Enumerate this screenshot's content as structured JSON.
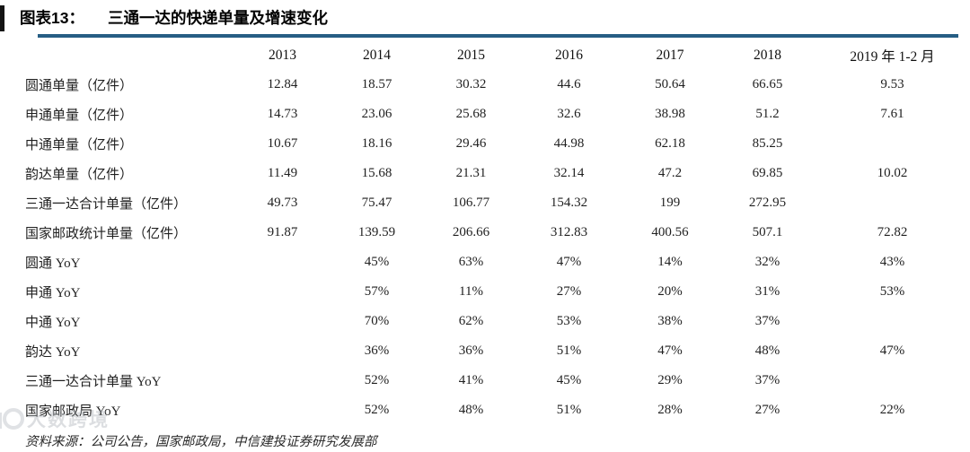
{
  "header": {
    "figure_label": "图表13：",
    "title": "三通一达的快递单量及增速变化",
    "rule_color": "#265E84"
  },
  "chart_data": {
    "type": "table",
    "title": "三通一达的快递单量及增速变化",
    "columns": [
      "2013",
      "2014",
      "2015",
      "2016",
      "2017",
      "2018",
      "2019 年 1-2 月"
    ],
    "rows": [
      {
        "label": "圆通单量（亿件）",
        "values": [
          "12.84",
          "18.57",
          "30.32",
          "44.6",
          "50.64",
          "66.65",
          "9.53"
        ]
      },
      {
        "label": "申通单量（亿件）",
        "values": [
          "14.73",
          "23.06",
          "25.68",
          "32.6",
          "38.98",
          "51.2",
          "7.61"
        ]
      },
      {
        "label": "中通单量（亿件）",
        "values": [
          "10.67",
          "18.16",
          "29.46",
          "44.98",
          "62.18",
          "85.25",
          ""
        ]
      },
      {
        "label": "韵达单量（亿件）",
        "values": [
          "11.49",
          "15.68",
          "21.31",
          "32.14",
          "47.2",
          "69.85",
          "10.02"
        ]
      },
      {
        "label": "三通一达合计单量（亿件）",
        "values": [
          "49.73",
          "75.47",
          "106.77",
          "154.32",
          "199",
          "272.95",
          ""
        ]
      },
      {
        "label": "国家邮政统计单量（亿件）",
        "values": [
          "91.87",
          "139.59",
          "206.66",
          "312.83",
          "400.56",
          "507.1",
          "72.82"
        ]
      },
      {
        "label": "圆通 YoY",
        "values": [
          "",
          "45%",
          "63%",
          "47%",
          "14%",
          "32%",
          "43%"
        ]
      },
      {
        "label": "申通 YoY",
        "values": [
          "",
          "57%",
          "11%",
          "27%",
          "20%",
          "31%",
          "53%"
        ]
      },
      {
        "label": "中通 YoY",
        "values": [
          "",
          "70%",
          "62%",
          "53%",
          "38%",
          "37%",
          ""
        ]
      },
      {
        "label": "韵达 YoY",
        "values": [
          "",
          "36%",
          "36%",
          "51%",
          "47%",
          "48%",
          "47%"
        ]
      },
      {
        "label": "三通一达合计单量 YoY",
        "values": [
          "",
          "52%",
          "41%",
          "45%",
          "29%",
          "37%",
          ""
        ]
      },
      {
        "label": "国家邮政局 YoY",
        "values": [
          "",
          "52%",
          "48%",
          "51%",
          "28%",
          "27%",
          "22%"
        ]
      }
    ]
  },
  "footer": {
    "source": "资料来源：公司公告，国家邮政局，中信建投证券研究发展部"
  },
  "watermark": {
    "text": "大数跨境"
  }
}
